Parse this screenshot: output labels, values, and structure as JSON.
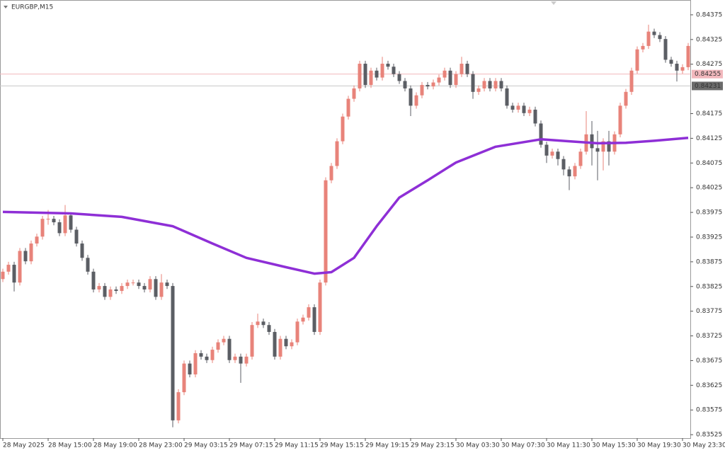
{
  "chart_data": {
    "type": "candlestick",
    "title": "EURGBP,M15",
    "up_color": "#e8837a",
    "down_color": "#5b5e64",
    "xlim": [
      -0.5,
      121.375
    ],
    "ylim": [
      0.83518,
      0.84405
    ],
    "yticks": [
      0.84375,
      0.84325,
      0.84275,
      0.84175,
      0.84125,
      0.84075,
      0.84025,
      0.83975,
      0.83925,
      0.83875,
      0.83825,
      0.83775,
      0.83725,
      0.83675,
      0.83625,
      0.83575,
      0.83525
    ],
    "xticks": [
      {
        "value": 0,
        "label": "28 May 2025"
      },
      {
        "value": 8,
        "label": "28 May 15:00"
      },
      {
        "value": 16,
        "label": "28 May 19:00"
      },
      {
        "value": 24,
        "label": "28 May 23:00"
      },
      {
        "value": 32,
        "label": "29 May 03:15"
      },
      {
        "value": 40,
        "label": "29 May 07:15"
      },
      {
        "value": 48,
        "label": "29 May 11:15"
      },
      {
        "value": 56,
        "label": "29 May 15:15"
      },
      {
        "value": 64,
        "label": "29 May 19:15"
      },
      {
        "value": 72,
        "label": "29 May 23:15"
      },
      {
        "value": 80,
        "label": "30 May 03:30"
      },
      {
        "value": 88,
        "label": "30 May 07:30"
      },
      {
        "value": 96,
        "label": "30 May 11:30"
      },
      {
        "value": 104,
        "label": "30 May 15:30"
      },
      {
        "value": 112,
        "label": "30 May 19:30"
      },
      {
        "value": 120,
        "label": "30 May 23:30"
      }
    ],
    "open": [
      0.8384,
      0.83855,
      0.83869,
      0.83833,
      0.83897,
      0.83876,
      0.83912,
      0.83926,
      0.83962,
      0.83962,
      0.83955,
      0.83933,
      0.83969,
      0.8394,
      0.83912,
      0.83883,
      0.83855,
      0.83819,
      0.83826,
      0.83804,
      0.83819,
      0.83816,
      0.83826,
      0.83833,
      0.83833,
      0.83826,
      0.83819,
      0.8384,
      0.83804,
      0.83833,
      0.83826,
      0.83554,
      0.83611,
      0.83669,
      0.83647,
      0.8369,
      0.83683,
      0.83676,
      0.83697,
      0.83712,
      0.83719,
      0.83676,
      0.83683,
      0.83669,
      0.83683,
      0.83747,
      0.83754,
      0.83747,
      0.83733,
      0.83683,
      0.83719,
      0.83704,
      0.83712,
      0.83754,
      0.83762,
      0.83783,
      0.83733,
      0.83833,
      0.8404,
      0.84069,
      0.84119,
      0.84169,
      0.84205,
      0.84226,
      0.84276,
      0.84233,
      0.84262,
      0.84248,
      0.84276,
      0.8427,
      0.84255,
      0.84241,
      0.84226,
      0.84191,
      0.84212,
      0.84233,
      0.8423,
      0.84238,
      0.84248,
      0.84262,
      0.84233,
      0.84255,
      0.84276,
      0.84255,
      0.84219,
      0.84226,
      0.84241,
      0.84226,
      0.84241,
      0.84226,
      0.84191,
      0.84183,
      0.84191,
      0.84176,
      0.84183,
      0.84155,
      0.84112,
      0.8409,
      0.84098,
      0.84083,
      0.84062,
      0.84048,
      0.84069,
      0.84098,
      0.84133,
      0.84105,
      0.84098,
      0.84119,
      0.84098,
      0.84133,
      0.84191,
      0.84219,
      0.84262,
      0.84305,
      0.84312,
      0.84341,
      0.84334,
      0.84326,
      0.84284,
      0.84276,
      0.84262,
      0.84269
    ],
    "high": [
      0.83861,
      0.83875,
      0.83875,
      0.83903,
      0.83903,
      0.83918,
      0.83932,
      0.83968,
      0.8398,
      0.83968,
      0.83961,
      0.8399,
      0.83975,
      0.83946,
      0.83918,
      0.83889,
      0.83861,
      0.83832,
      0.83832,
      0.83825,
      0.83825,
      0.83832,
      0.83839,
      0.83839,
      0.83839,
      0.83832,
      0.83846,
      0.83846,
      0.8385,
      0.83839,
      0.83832,
      0.83617,
      0.83675,
      0.83675,
      0.83696,
      0.83696,
      0.83689,
      0.83703,
      0.83718,
      0.83725,
      0.83725,
      0.83689,
      0.83689,
      0.83689,
      0.83753,
      0.8377,
      0.8376,
      0.83753,
      0.83739,
      0.83725,
      0.83725,
      0.83718,
      0.8376,
      0.83768,
      0.83789,
      0.83789,
      0.83839,
      0.84046,
      0.84075,
      0.84125,
      0.84175,
      0.84211,
      0.84232,
      0.84282,
      0.84282,
      0.84268,
      0.84268,
      0.8429,
      0.84282,
      0.84276,
      0.84261,
      0.84247,
      0.84232,
      0.84218,
      0.84239,
      0.84239,
      0.84244,
      0.84254,
      0.84268,
      0.84268,
      0.84261,
      0.8429,
      0.84282,
      0.84261,
      0.84232,
      0.84247,
      0.84247,
      0.84247,
      0.84247,
      0.84232,
      0.84197,
      0.84197,
      0.84197,
      0.84189,
      0.84189,
      0.84161,
      0.84118,
      0.84104,
      0.84104,
      0.84089,
      0.84068,
      0.84075,
      0.84104,
      0.8418,
      0.8416,
      0.8414,
      0.84125,
      0.8414,
      0.84139,
      0.84197,
      0.84225,
      0.84268,
      0.84311,
      0.84318,
      0.84355,
      0.84347,
      0.8434,
      0.84332,
      0.8429,
      0.84282,
      0.84275,
      0.84318
    ],
    "low": [
      0.83834,
      0.83849,
      0.83815,
      0.83827,
      0.8387,
      0.8387,
      0.83906,
      0.8392,
      0.8395,
      0.83949,
      0.83927,
      0.83927,
      0.83934,
      0.83906,
      0.83877,
      0.83849,
      0.83813,
      0.83813,
      0.83798,
      0.83798,
      0.8381,
      0.8381,
      0.8382,
      0.83827,
      0.8382,
      0.83813,
      0.83813,
      0.83798,
      0.83798,
      0.8382,
      0.8354,
      0.83548,
      0.83605,
      0.83641,
      0.83641,
      0.83677,
      0.8367,
      0.8367,
      0.83691,
      0.83706,
      0.8367,
      0.8367,
      0.8363,
      0.83663,
      0.83677,
      0.83741,
      0.83741,
      0.83727,
      0.83677,
      0.83677,
      0.83698,
      0.83698,
      0.83706,
      0.83748,
      0.83756,
      0.83727,
      0.83727,
      0.83827,
      0.84034,
      0.84063,
      0.84113,
      0.84163,
      0.84199,
      0.8422,
      0.84227,
      0.84227,
      0.84242,
      0.84242,
      0.84264,
      0.84249,
      0.84235,
      0.8422,
      0.8417,
      0.84185,
      0.84206,
      0.84224,
      0.84224,
      0.84232,
      0.84242,
      0.84227,
      0.84227,
      0.84249,
      0.84249,
      0.84205,
      0.84213,
      0.8422,
      0.8422,
      0.8422,
      0.8422,
      0.84185,
      0.84177,
      0.84177,
      0.8417,
      0.8417,
      0.84149,
      0.84106,
      0.84075,
      0.84084,
      0.8407,
      0.8405,
      0.8402,
      0.84042,
      0.84063,
      0.84092,
      0.8407,
      0.8404,
      0.8406,
      0.8407,
      0.84092,
      0.84127,
      0.84185,
      0.84213,
      0.84256,
      0.84299,
      0.84306,
      0.84328,
      0.8432,
      0.84278,
      0.8427,
      0.8424,
      0.84256,
      0.84263
    ],
    "close": [
      0.83855,
      0.83869,
      0.83833,
      0.83897,
      0.83876,
      0.83912,
      0.83926,
      0.83962,
      0.83962,
      0.83955,
      0.83933,
      0.83969,
      0.8394,
      0.83912,
      0.83883,
      0.83855,
      0.83819,
      0.83826,
      0.83804,
      0.83819,
      0.83816,
      0.83826,
      0.83833,
      0.83833,
      0.83826,
      0.83819,
      0.8384,
      0.83804,
      0.83833,
      0.83826,
      0.83554,
      0.83611,
      0.83669,
      0.83647,
      0.8369,
      0.83683,
      0.83676,
      0.83697,
      0.83712,
      0.83719,
      0.83676,
      0.83683,
      0.83669,
      0.83683,
      0.83747,
      0.83754,
      0.83747,
      0.83733,
      0.83683,
      0.83719,
      0.83704,
      0.83712,
      0.83754,
      0.83762,
      0.83783,
      0.83733,
      0.83833,
      0.8404,
      0.84069,
      0.84119,
      0.84169,
      0.84205,
      0.84226,
      0.84276,
      0.84233,
      0.84262,
      0.84248,
      0.84276,
      0.8427,
      0.84255,
      0.84241,
      0.84226,
      0.84191,
      0.84212,
      0.84233,
      0.8423,
      0.84238,
      0.84248,
      0.84262,
      0.84233,
      0.84255,
      0.84276,
      0.84255,
      0.84219,
      0.84226,
      0.84241,
      0.84226,
      0.84241,
      0.84226,
      0.84191,
      0.84183,
      0.84191,
      0.84176,
      0.84183,
      0.84155,
      0.84112,
      0.8409,
      0.84098,
      0.84083,
      0.84062,
      0.84048,
      0.84069,
      0.84098,
      0.84133,
      0.84105,
      0.84098,
      0.84119,
      0.84098,
      0.84133,
      0.84191,
      0.84219,
      0.84262,
      0.84305,
      0.84312,
      0.84341,
      0.84334,
      0.84326,
      0.84284,
      0.84276,
      0.84262,
      0.84269,
      0.84312
    ],
    "series": [
      {
        "type": "line",
        "color": "#8e2fd6",
        "x": [
          0,
          12,
          21,
          30,
          37,
          43,
          50,
          55,
          58,
          62,
          66,
          70,
          75,
          80,
          87,
          95,
          100,
          105,
          110,
          115,
          121
        ],
        "values": [
          0.83976,
          0.83973,
          0.83966,
          0.83947,
          0.83912,
          0.83883,
          0.83864,
          0.83851,
          0.83854,
          0.83883,
          0.83947,
          0.84005,
          0.8404,
          0.84076,
          0.84108,
          0.84123,
          0.84119,
          0.84115,
          0.84116,
          0.8412,
          0.84126
        ]
      }
    ],
    "hlines": [
      {
        "value": 0.84255,
        "color": "#f2b8bd",
        "label_bg": "#f2b8bd"
      },
      {
        "value": 0.84231,
        "color": "#c8c8c8",
        "label_bg": "#6b6b6b"
      }
    ]
  }
}
